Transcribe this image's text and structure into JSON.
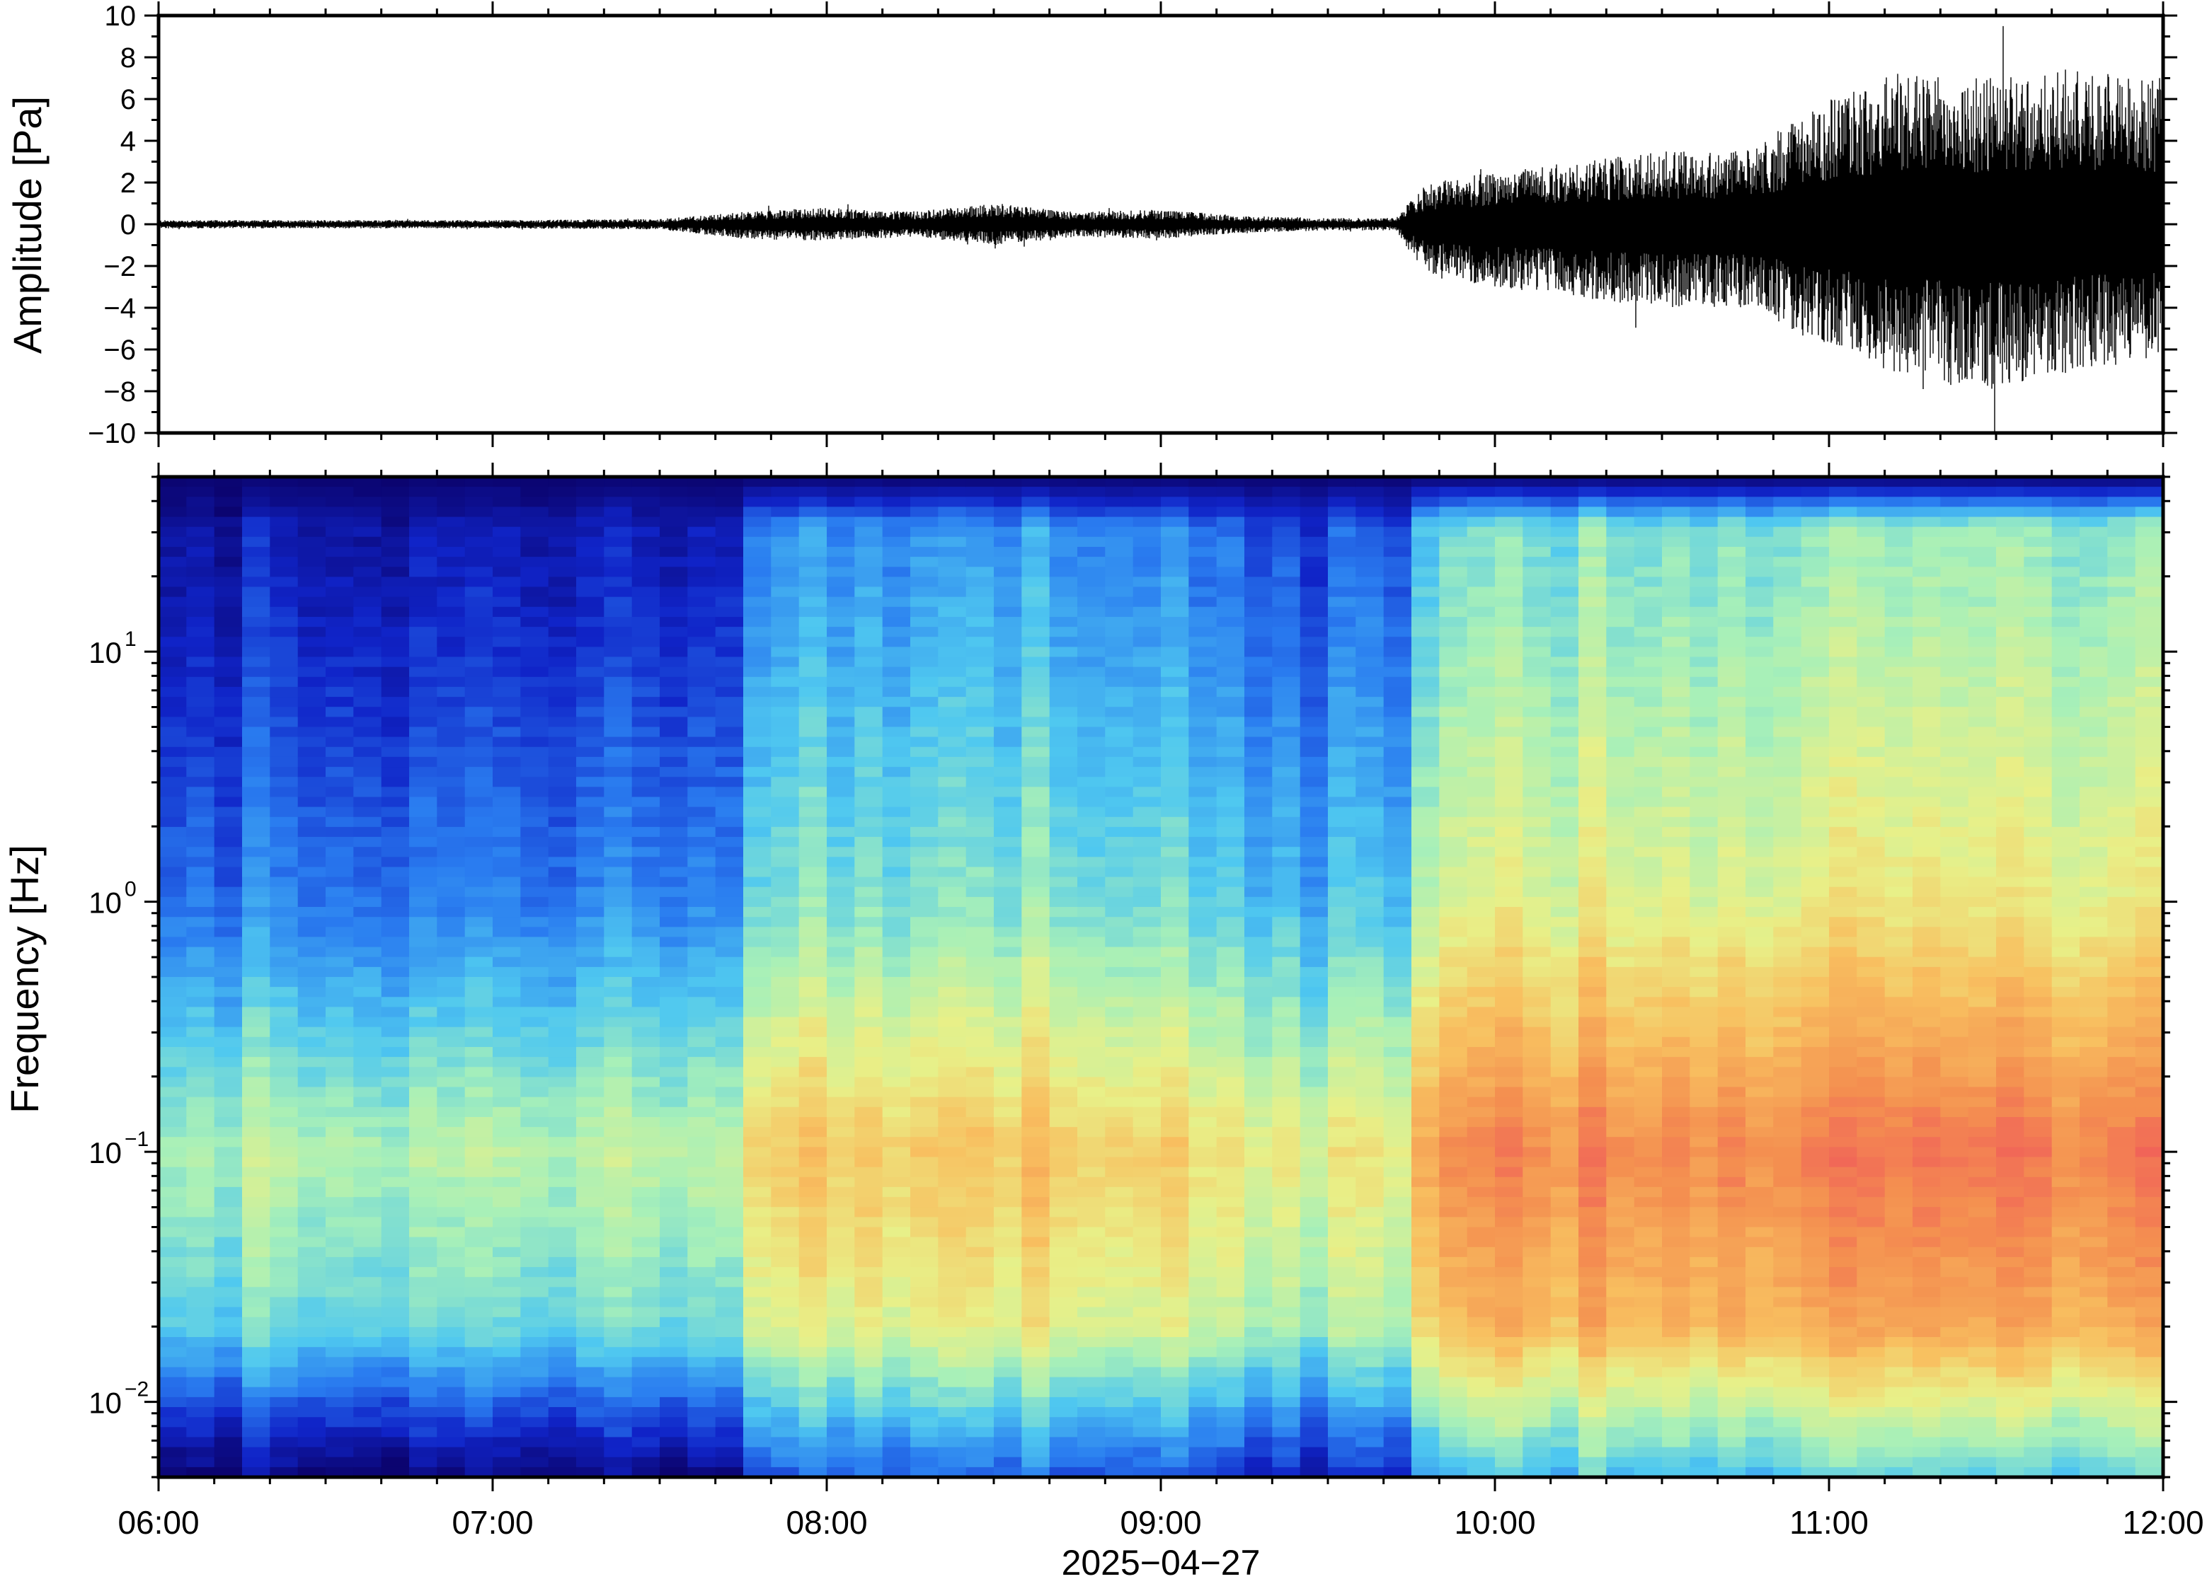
{
  "chart_data": [
    {
      "type": "line",
      "ylabel": "Amplitude [Pa]",
      "ylim": [
        -10,
        10
      ],
      "yticks": [
        "10",
        "8",
        "6",
        "4",
        "2",
        "0",
        "−2",
        "−4",
        "−6",
        "−8",
        "−10"
      ],
      "xlim": [
        "06:00",
        "12:00"
      ],
      "series": [
        {
          "color": "#000000",
          "envelope": {
            "x": [
              "06:00",
              "06:30",
              "07:00",
              "07:30",
              "07:45",
              "08:00",
              "08:15",
              "08:30",
              "08:45",
              "09:00",
              "09:15",
              "09:30",
              "09:42",
              "09:48",
              "10:00",
              "10:15",
              "10:30",
              "10:45",
              "11:00",
              "11:15",
              "11:30",
              "11:45",
              "12:00"
            ],
            "upper": [
              0.2,
              0.2,
              0.2,
              0.25,
              0.6,
              0.8,
              0.6,
              1.0,
              0.6,
              0.7,
              0.4,
              0.3,
              0.3,
              2.0,
              2.5,
              3.0,
              3.5,
              3.5,
              6.0,
              7.5,
              7.0,
              7.5,
              7.0
            ],
            "lower": [
              -0.2,
              -0.2,
              -0.2,
              -0.25,
              -0.7,
              -0.8,
              -0.6,
              -1.0,
              -0.6,
              -0.7,
              -0.4,
              -0.3,
              -0.3,
              -2.5,
              -3.0,
              -3.5,
              -4.0,
              -4.0,
              -6.0,
              -7.5,
              -8.0,
              -7.0,
              -6.5
            ]
          }
        }
      ]
    },
    {
      "type": "heatmap",
      "ylabel": "Frequency [Hz]",
      "yscale": "log",
      "ylim": [
        0.005,
        50
      ],
      "yticks": [
        {
          "base": "10",
          "exp": "1",
          "value": 10
        },
        {
          "base": "10",
          "exp": "0",
          "value": 1
        },
        {
          "base": "10",
          "exp": "−1",
          "value": 0.1
        },
        {
          "base": "10",
          "exp": "−2",
          "value": 0.01
        }
      ],
      "xlabel": "2025−04−27",
      "xticks": [
        "06:00",
        "07:00",
        "08:00",
        "09:00",
        "10:00",
        "11:00",
        "12:00"
      ],
      "colormap": [
        "#0b0470",
        "#1024c8",
        "#2a7df0",
        "#4fc8f0",
        "#a8f0b8",
        "#e8f088",
        "#f8c060",
        "#f49050",
        "#f05a5a",
        "#f8b0b0"
      ],
      "segments": [
        {
          "from": "06:00",
          "to": "07:43",
          "level": 0.0
        },
        {
          "from": "07:43",
          "to": "08:00",
          "level": 0.45
        },
        {
          "from": "08:00",
          "to": "08:30",
          "level": 0.5
        },
        {
          "from": "08:30",
          "to": "09:00",
          "level": 0.55
        },
        {
          "from": "09:00",
          "to": "09:13",
          "level": 0.45
        },
        {
          "from": "09:13",
          "to": "09:45",
          "level": 0.2
        },
        {
          "from": "09:45",
          "to": "10:00",
          "level": 0.8
        },
        {
          "from": "10:00",
          "to": "11:00",
          "level": 0.9
        },
        {
          "from": "11:00",
          "to": "12:00",
          "level": 1.0
        }
      ]
    }
  ]
}
